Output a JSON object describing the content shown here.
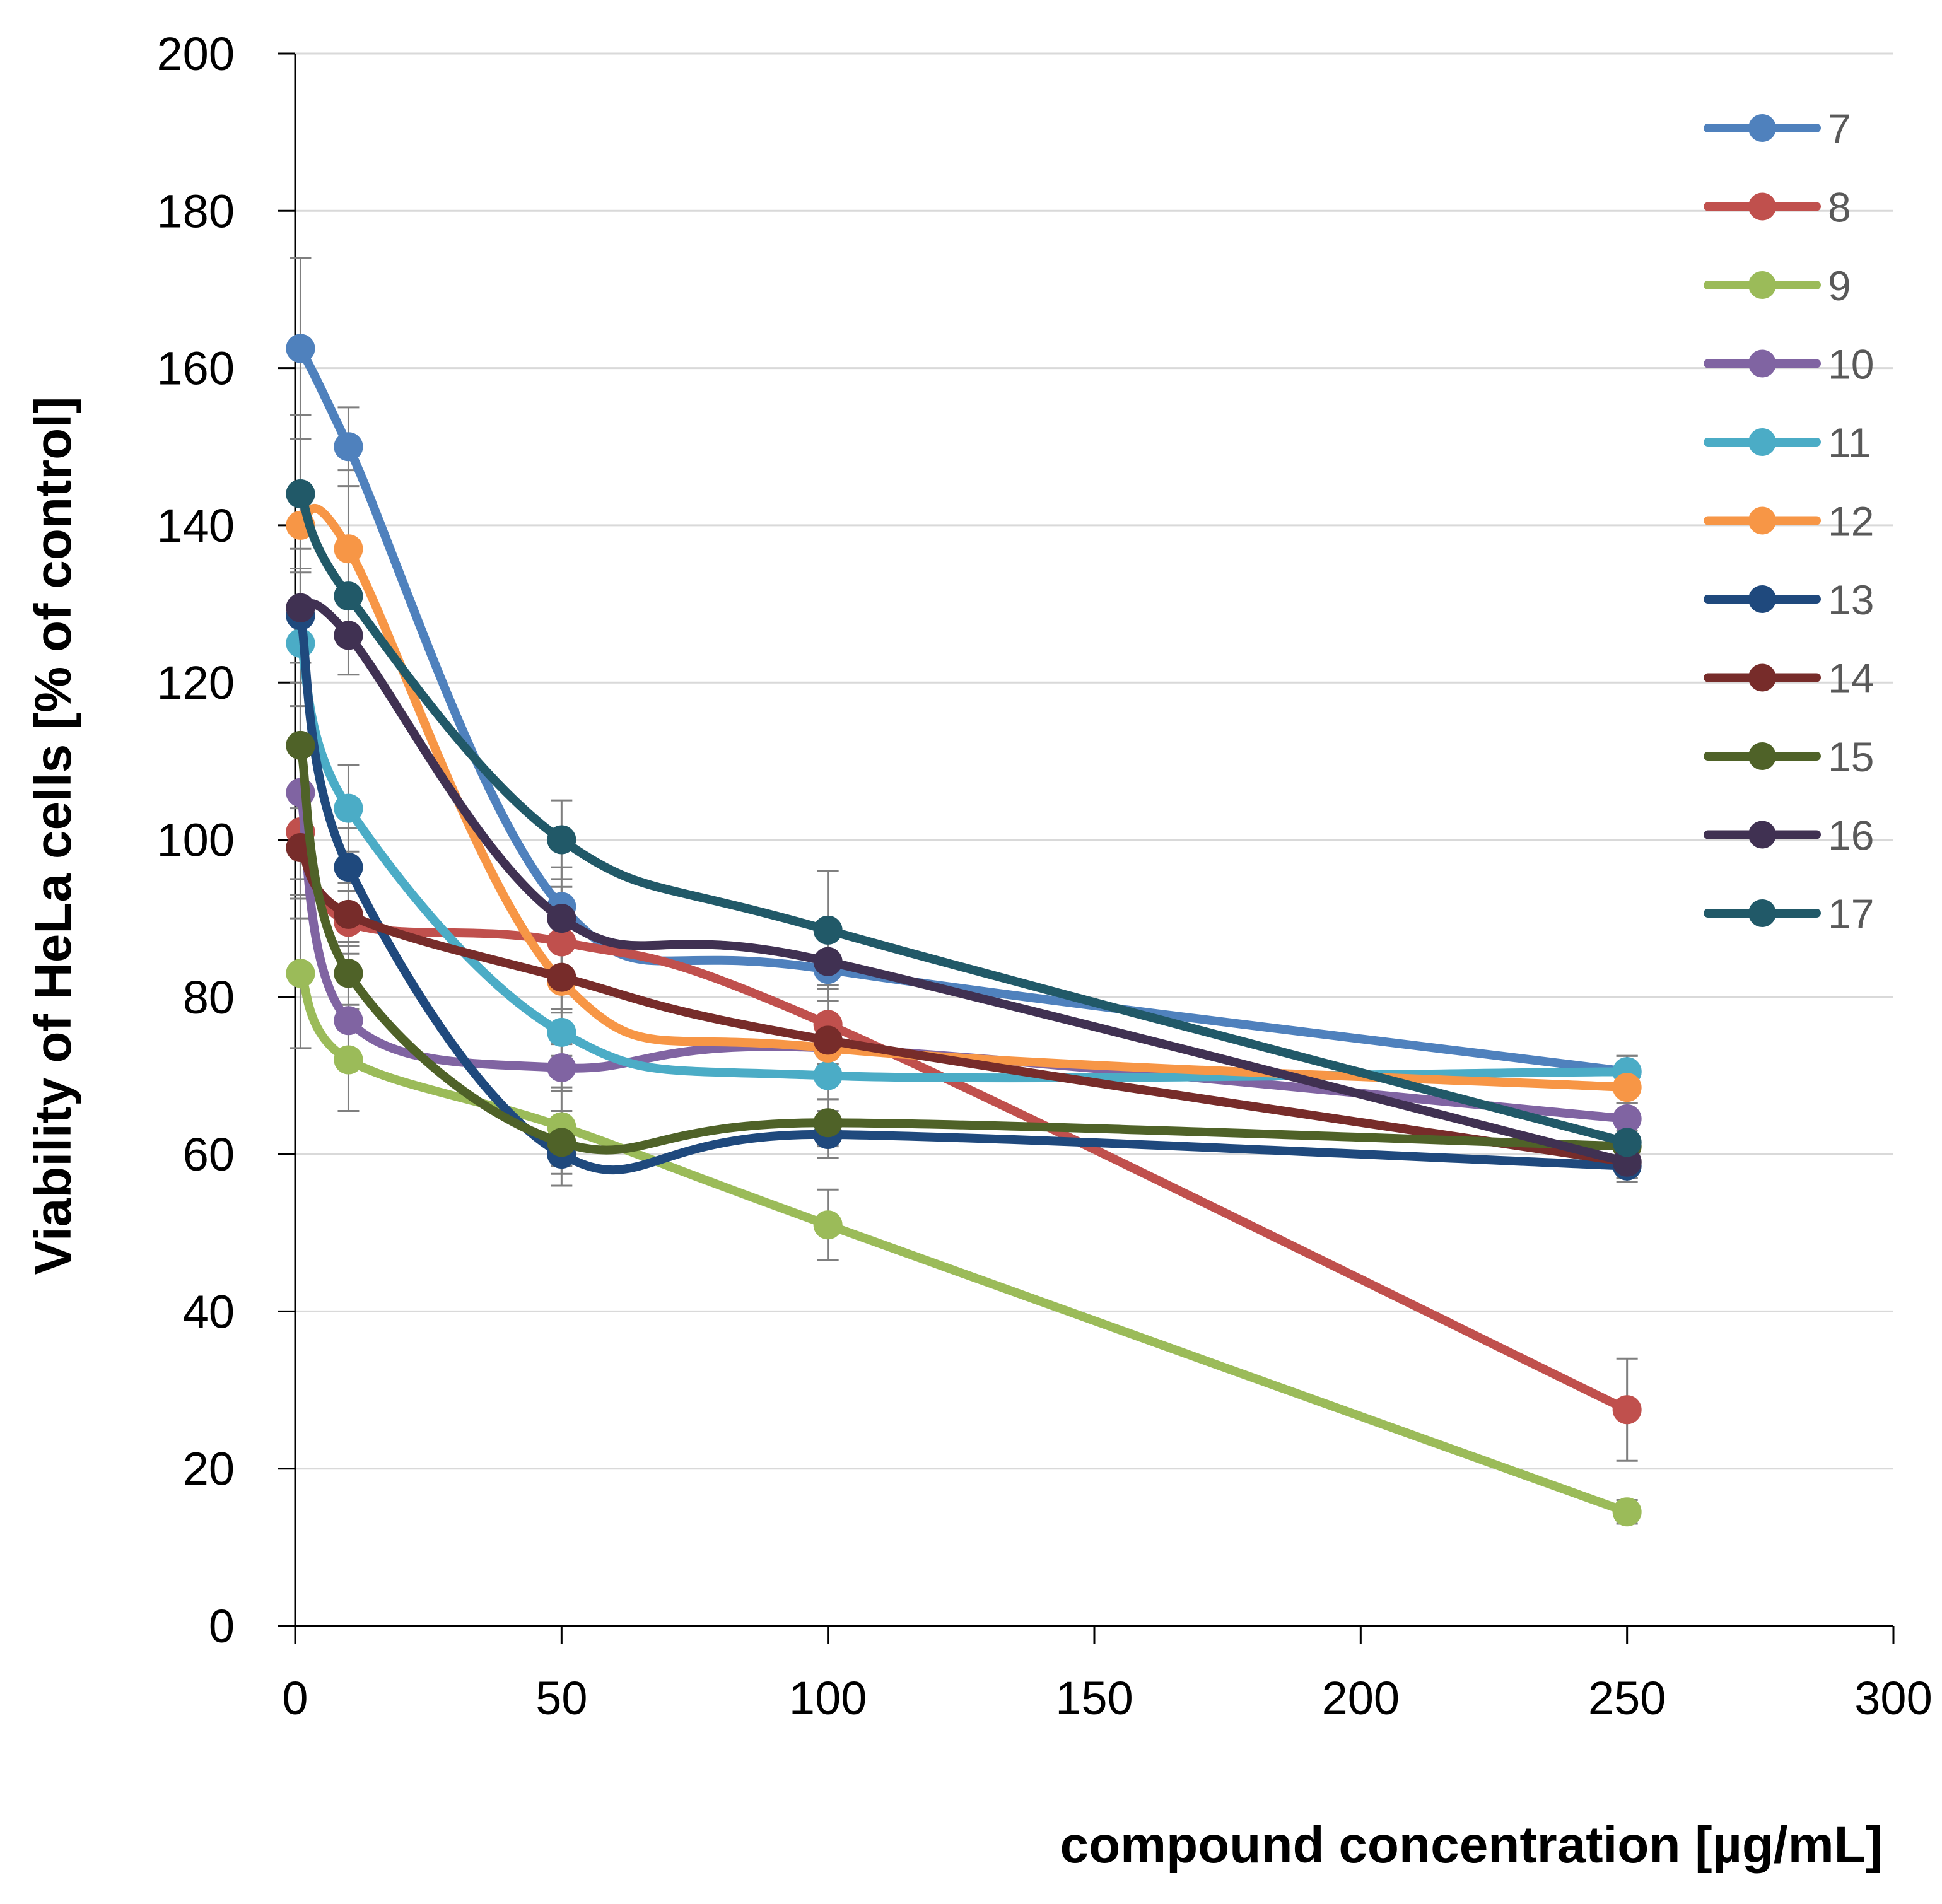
{
  "chart_data": {
    "type": "line",
    "title": "",
    "xlabel": "compound concentration [µg/mL]",
    "ylabel": "Viability of HeLa cells [% of control]",
    "xlim": [
      0,
      300
    ],
    "ylim": [
      0,
      200
    ],
    "xticks": [
      0,
      50,
      100,
      150,
      200,
      250,
      300
    ],
    "yticks": [
      0,
      20,
      40,
      60,
      80,
      100,
      120,
      140,
      160,
      180,
      200
    ],
    "grid": "horizontal",
    "legend_position": "top-right",
    "x": [
      1,
      10,
      50,
      100,
      250
    ],
    "series": [
      {
        "name": "7",
        "color": "#4f81bd",
        "values": [
          162.5,
          150,
          91.5,
          83.5,
          70.5
        ],
        "errors": [
          11.5,
          5,
          5,
          4,
          2
        ]
      },
      {
        "name": "8",
        "color": "#c0504d",
        "values": [
          101,
          89.5,
          87,
          76.5,
          27.5
        ],
        "errors": [
          11,
          4,
          4,
          5,
          6.5
        ]
      },
      {
        "name": "9",
        "color": "#9bbb59",
        "values": [
          83,
          72,
          63.5,
          51,
          14.5
        ],
        "errors": [
          9.5,
          6.5,
          5,
          4.5,
          1.5
        ]
      },
      {
        "name": "10",
        "color": "#8064a2",
        "values": [
          106,
          77,
          71,
          73.5,
          64.5
        ],
        "errors": [
          11,
          5,
          3,
          3,
          2
        ]
      },
      {
        "name": "11",
        "color": "#4bacc6",
        "values": [
          125,
          104,
          75.5,
          70,
          70.5
        ],
        "errors": [
          12,
          5.5,
          3,
          3,
          2
        ]
      },
      {
        "name": "12",
        "color": "#f79646",
        "values": [
          140,
          137,
          82,
          73.5,
          68.5
        ],
        "errors": [
          14,
          10,
          4,
          3,
          2
        ]
      },
      {
        "name": "13",
        "color": "#1f497d",
        "values": [
          128.5,
          96.5,
          60,
          62.5,
          58.5
        ],
        "errors": [
          6,
          5,
          4,
          3,
          2
        ]
      },
      {
        "name": "14",
        "color": "#772c2a",
        "values": [
          99,
          90.5,
          82.5,
          74.5,
          59
        ],
        "errors": [
          6,
          4,
          4,
          3,
          2
        ]
      },
      {
        "name": "15",
        "color": "#4f6228",
        "values": [
          112,
          83,
          61.5,
          64,
          61
        ],
        "errors": [
          8,
          4,
          4,
          3,
          2
        ]
      },
      {
        "name": "16",
        "color": "#403152",
        "values": [
          129.5,
          126,
          90,
          84.5,
          59
        ],
        "errors": [
          5,
          5,
          4,
          3,
          2
        ]
      },
      {
        "name": "17",
        "color": "#215968",
        "values": [
          144,
          131,
          100,
          88.5,
          61.5
        ],
        "errors": [
          10,
          5,
          5,
          7.5,
          2
        ]
      }
    ]
  }
}
